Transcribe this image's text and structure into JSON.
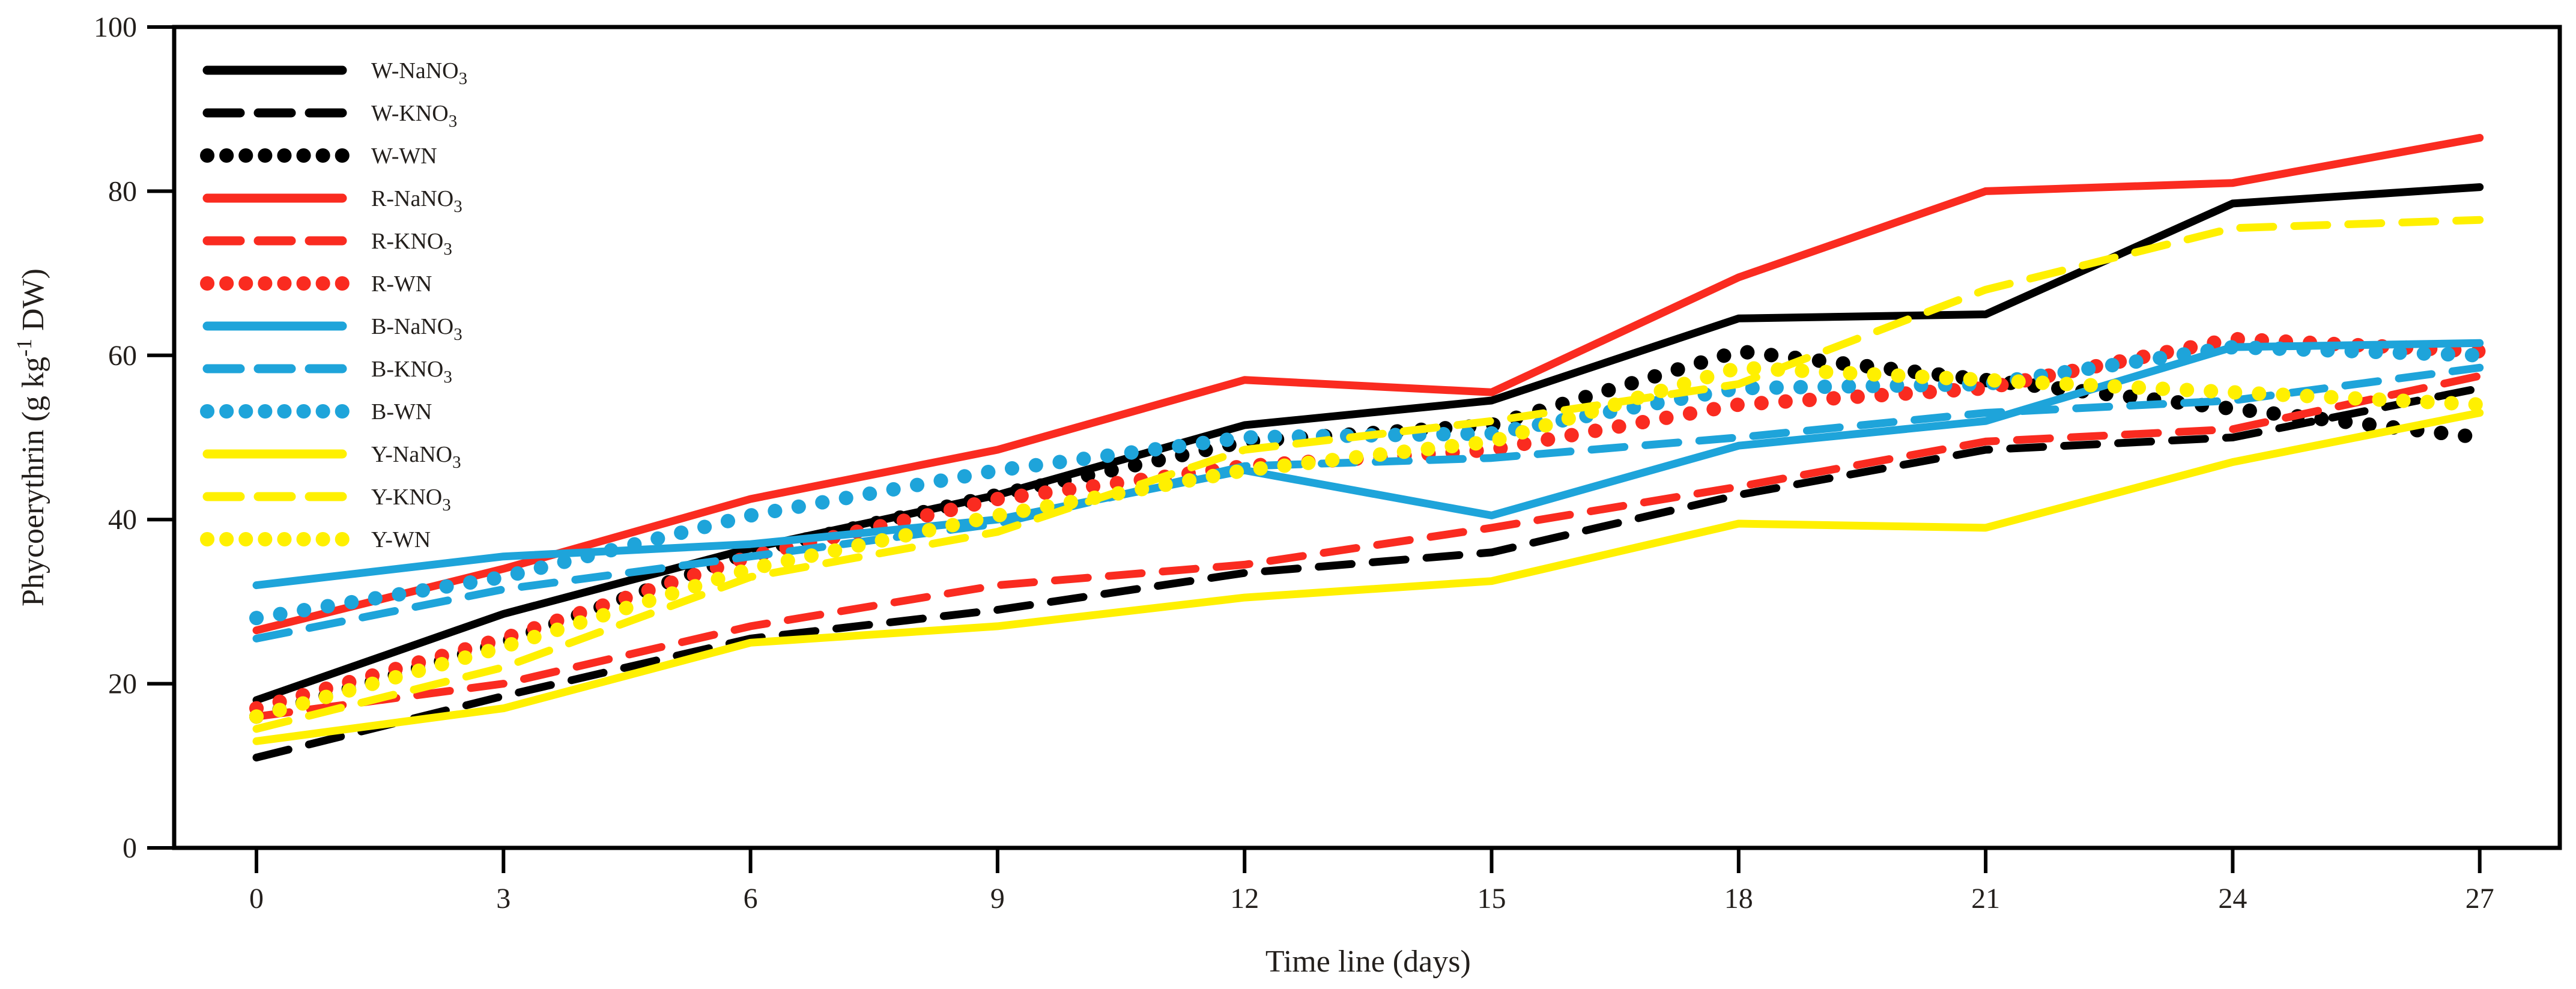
{
  "chart_data": {
    "type": "line",
    "title": "",
    "xlabel": "Time line (days)",
    "ylabel": "Phycoerythrin (g kg-1 DW)",
    "ylabel_parts": {
      "prefix": "Phycoerythrin (g kg",
      "sup": "-1",
      "suffix": " DW)"
    },
    "x": [
      0,
      3,
      6,
      9,
      12,
      15,
      18,
      21,
      24,
      27
    ],
    "xticks": [
      0,
      3,
      6,
      9,
      12,
      15,
      18,
      21,
      24,
      27
    ],
    "yticks": [
      0,
      20,
      40,
      60,
      80,
      100
    ],
    "ylim": [
      0,
      100
    ],
    "grid": false,
    "legend_position": "upper left inside",
    "series": [
      {
        "name": "W-NaNO3",
        "label_base": "W-NaNO",
        "label_sub": "3",
        "color": "#000000",
        "style": "solid",
        "values": [
          18,
          28.5,
          36.5,
          43,
          51.5,
          54.5,
          64.5,
          65,
          78.5,
          80.5
        ]
      },
      {
        "name": "W-KNO3",
        "label_base": "W-KNO",
        "label_sub": "3",
        "color": "#000000",
        "style": "dashed",
        "values": [
          11,
          18.5,
          25.5,
          29,
          33.5,
          36,
          43,
          48.5,
          50,
          56
        ]
      },
      {
        "name": "W-WN",
        "label_base": "W-WN",
        "label_sub": "",
        "color": "#000000",
        "style": "dotted",
        "values": [
          16,
          25,
          36,
          43,
          49.5,
          51.5,
          60.5,
          57,
          53.5,
          50
        ]
      },
      {
        "name": "R-NaNO3",
        "label_base": "R-NaNO",
        "label_sub": "3",
        "color": "#fa2b20",
        "style": "solid",
        "values": [
          26.5,
          34,
          42.5,
          48.5,
          57,
          55.5,
          69.5,
          80,
          81,
          86.5
        ]
      },
      {
        "name": "R-KNO3",
        "label_base": "R-KNO",
        "label_sub": "3",
        "color": "#fa2b20",
        "style": "dashed",
        "values": [
          16,
          20,
          27,
          32,
          34.5,
          39,
          44,
          49.5,
          51,
          57.5
        ]
      },
      {
        "name": "R-WN",
        "label_base": "R-WN",
        "label_sub": "",
        "color": "#fa2b20",
        "style": "dotted",
        "values": [
          17,
          25.5,
          35.5,
          42.5,
          46.5,
          48.5,
          54,
          56,
          62,
          60.5
        ]
      },
      {
        "name": "B-NaNO3",
        "label_base": "B-NaNO",
        "label_sub": "3",
        "color": "#1ea4da",
        "style": "solid",
        "values": [
          32,
          35.5,
          37,
          40,
          46,
          40.5,
          49,
          52,
          61,
          61.5
        ]
      },
      {
        "name": "B-KNO3",
        "label_base": "B-KNO",
        "label_sub": "3",
        "color": "#1ea4da",
        "style": "dashed",
        "values": [
          25.5,
          31.5,
          35.5,
          39.5,
          46.5,
          47.5,
          50,
          53,
          54.5,
          58.5
        ]
      },
      {
        "name": "B-WN",
        "label_base": "B-WN",
        "label_sub": "",
        "color": "#1ea4da",
        "style": "dotted",
        "values": [
          28,
          33,
          40.5,
          46,
          50,
          50.5,
          56,
          56.5,
          61,
          60
        ]
      },
      {
        "name": "Y-NaNO3",
        "label_base": "Y-NaNO",
        "label_sub": "3",
        "color": "#fff000",
        "style": "solid",
        "values": [
          13,
          17,
          25,
          27,
          30.5,
          32.5,
          39.5,
          39,
          47,
          53
        ]
      },
      {
        "name": "Y-KNO3",
        "label_base": "Y-KNO",
        "label_sub": "3",
        "color": "#fff000",
        "style": "dashed",
        "values": [
          14.5,
          22,
          33,
          38.5,
          48.5,
          52,
          56.5,
          68,
          75.5,
          76.5
        ]
      },
      {
        "name": "Y-WN",
        "label_base": "Y-WN",
        "label_sub": "",
        "color": "#fff000",
        "style": "dotted",
        "values": [
          16,
          24.5,
          34,
          40.5,
          46,
          49.5,
          58.5,
          57,
          55.5,
          54
        ]
      }
    ]
  },
  "colors": {
    "background": "#ffffff",
    "axis": "#000000",
    "text": "#231f1c",
    "black_series": "#000000",
    "red_series": "#fa2b20",
    "blue_series": "#1ea4da",
    "yellow_series": "#fff000"
  }
}
